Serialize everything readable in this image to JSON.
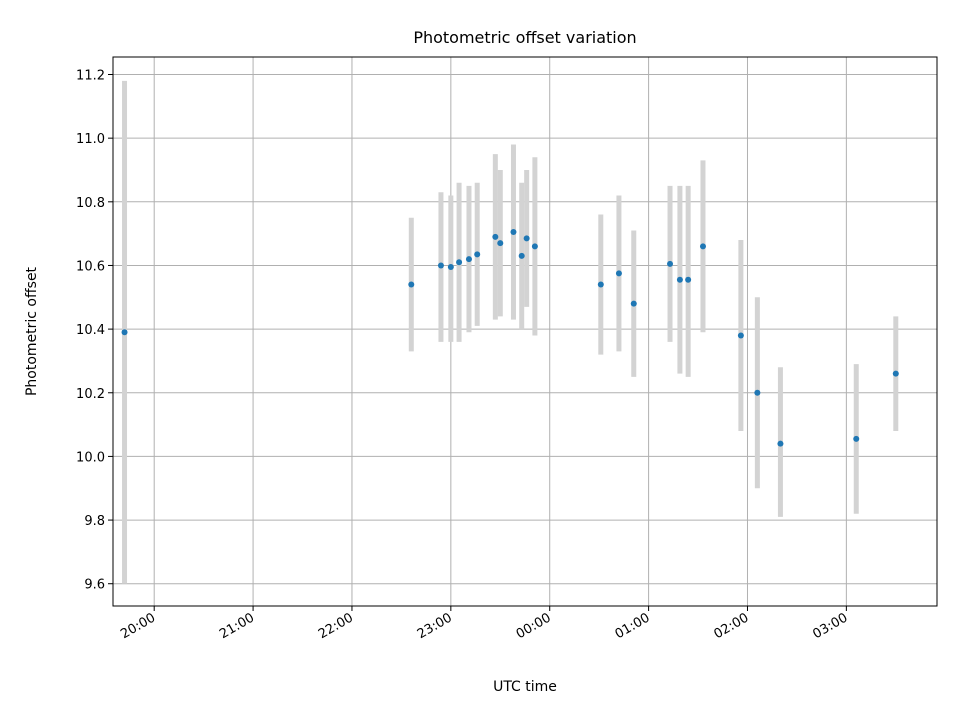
{
  "chart_data": {
    "type": "scatter",
    "title": "Photometric offset variation",
    "xlabel": "UTC time",
    "ylabel": "Photometric offset",
    "x_axis_type": "time",
    "xlim": [
      "19:35",
      "03:55"
    ],
    "ylim": [
      9.53,
      11.255
    ],
    "xticks": [
      "20:00",
      "21:00",
      "22:00",
      "23:00",
      "00:00",
      "01:00",
      "02:00",
      "03:00"
    ],
    "yticks": [
      "9.6",
      "9.8",
      "10.0",
      "10.2",
      "10.4",
      "10.6",
      "10.8",
      "11.0",
      "11.2"
    ],
    "grid": true,
    "legend": "none",
    "colors": {
      "point": "#1f77b4",
      "errorbar": "#d3d3d3",
      "grid": "#b0b0b0"
    },
    "series": [
      {
        "points": [
          {
            "x": "19:42",
            "y": 10.39,
            "ylo": 9.6,
            "yhi": 11.18
          },
          {
            "x": "22:36",
            "y": 10.54,
            "ylo": 10.33,
            "yhi": 10.75
          },
          {
            "x": "22:54",
            "y": 10.6,
            "ylo": 10.36,
            "yhi": 10.83
          },
          {
            "x": "23:00",
            "y": 10.595,
            "ylo": 10.36,
            "yhi": 10.82
          },
          {
            "x": "23:05",
            "y": 10.61,
            "ylo": 10.36,
            "yhi": 10.86
          },
          {
            "x": "23:11",
            "y": 10.62,
            "ylo": 10.39,
            "yhi": 10.85
          },
          {
            "x": "23:16",
            "y": 10.635,
            "ylo": 10.41,
            "yhi": 10.86
          },
          {
            "x": "23:27",
            "y": 10.69,
            "ylo": 10.43,
            "yhi": 10.95
          },
          {
            "x": "23:30",
            "y": 10.67,
            "ylo": 10.44,
            "yhi": 10.9
          },
          {
            "x": "23:38",
            "y": 10.705,
            "ylo": 10.43,
            "yhi": 10.98
          },
          {
            "x": "23:43",
            "y": 10.63,
            "ylo": 10.4,
            "yhi": 10.86
          },
          {
            "x": "23:46",
            "y": 10.685,
            "ylo": 10.47,
            "yhi": 10.9
          },
          {
            "x": "23:51",
            "y": 10.66,
            "ylo": 10.38,
            "yhi": 10.94
          },
          {
            "x": "00:31",
            "y": 10.54,
            "ylo": 10.32,
            "yhi": 10.76
          },
          {
            "x": "00:42",
            "y": 10.575,
            "ylo": 10.33,
            "yhi": 10.82
          },
          {
            "x": "00:51",
            "y": 10.48,
            "ylo": 10.25,
            "yhi": 10.71
          },
          {
            "x": "01:13",
            "y": 10.605,
            "ylo": 10.36,
            "yhi": 10.85
          },
          {
            "x": "01:19",
            "y": 10.555,
            "ylo": 10.26,
            "yhi": 10.85
          },
          {
            "x": "01:24",
            "y": 10.555,
            "ylo": 10.25,
            "yhi": 10.85
          },
          {
            "x": "01:33",
            "y": 10.66,
            "ylo": 10.39,
            "yhi": 10.93
          },
          {
            "x": "01:56",
            "y": 10.38,
            "ylo": 10.08,
            "yhi": 10.68
          },
          {
            "x": "02:06",
            "y": 10.2,
            "ylo": 9.9,
            "yhi": 10.5
          },
          {
            "x": "02:20",
            "y": 10.04,
            "ylo": 9.81,
            "yhi": 10.28
          },
          {
            "x": "03:06",
            "y": 10.055,
            "ylo": 9.82,
            "yhi": 10.29
          },
          {
            "x": "03:30",
            "y": 10.26,
            "ylo": 10.08,
            "yhi": 10.44
          }
        ]
      }
    ]
  }
}
